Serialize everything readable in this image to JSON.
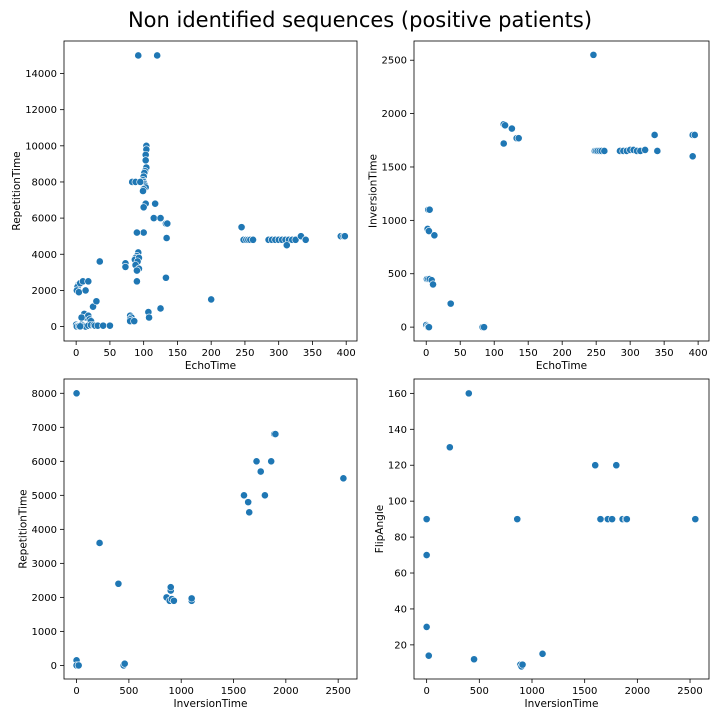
{
  "figure": {
    "title": "Non identified sequences (positive patients)"
  },
  "chart_data": [
    {
      "type": "scatter",
      "xlabel": "EchoTime",
      "ylabel": "RepetitionTime",
      "xlim": [
        -18,
        416
      ],
      "ylim": [
        -800,
        15800
      ],
      "xticks": [
        0,
        50,
        100,
        150,
        200,
        250,
        300,
        350,
        400
      ],
      "yticks": [
        0,
        2000,
        4000,
        6000,
        8000,
        10000,
        12000,
        14000
      ],
      "points": [
        [
          92,
          15000
        ],
        [
          120,
          15000
        ],
        [
          104,
          10000
        ],
        [
          104,
          9800
        ],
        [
          103,
          9500
        ],
        [
          103,
          9200
        ],
        [
          104,
          8800
        ],
        [
          102,
          8600
        ],
        [
          101,
          8500
        ],
        [
          100,
          8300
        ],
        [
          99,
          8100
        ],
        [
          100,
          8000
        ],
        [
          101,
          7900
        ],
        [
          102,
          7800
        ],
        [
          103,
          7700
        ],
        [
          100,
          7600
        ],
        [
          99,
          7500
        ],
        [
          83,
          8000
        ],
        [
          88,
          8000
        ],
        [
          95,
          8000
        ],
        [
          103,
          6800
        ],
        [
          117,
          6800
        ],
        [
          115,
          6000
        ],
        [
          125,
          6000
        ],
        [
          133,
          5700
        ],
        [
          135,
          5700
        ],
        [
          134,
          4900
        ],
        [
          100,
          6600
        ],
        [
          100,
          5200
        ],
        [
          90,
          5200
        ],
        [
          92,
          4100
        ],
        [
          90,
          3900
        ],
        [
          88,
          3800
        ],
        [
          87,
          3700
        ],
        [
          93,
          3800
        ],
        [
          91,
          3600
        ],
        [
          88,
          3400
        ],
        [
          93,
          3200
        ],
        [
          90,
          3100
        ],
        [
          90,
          2500
        ],
        [
          133,
          2700
        ],
        [
          73,
          3500
        ],
        [
          73,
          3300
        ],
        [
          35,
          3600
        ],
        [
          80,
          600
        ],
        [
          82,
          500
        ],
        [
          80,
          400
        ],
        [
          80,
          300
        ],
        [
          86,
          300
        ],
        [
          107,
          800
        ],
        [
          108,
          500
        ],
        [
          125,
          1000
        ],
        [
          200,
          1500
        ],
        [
          245,
          5500
        ],
        [
          248,
          4800
        ],
        [
          252,
          4800
        ],
        [
          255,
          4800
        ],
        [
          258,
          4800
        ],
        [
          262,
          4800
        ],
        [
          285,
          4800
        ],
        [
          290,
          4800
        ],
        [
          295,
          4800
        ],
        [
          300,
          4800
        ],
        [
          305,
          4800
        ],
        [
          310,
          4800
        ],
        [
          315,
          4800
        ],
        [
          320,
          4800
        ],
        [
          325,
          4800
        ],
        [
          333,
          5000
        ],
        [
          340,
          4800
        ],
        [
          312,
          4500
        ],
        [
          392,
          5000
        ],
        [
          396,
          5000
        ],
        [
          398,
          5000
        ],
        [
          3,
          2300
        ],
        [
          2,
          2200
        ],
        [
          1,
          2000
        ],
        [
          4,
          1900
        ],
        [
          6,
          2400
        ],
        [
          10,
          2500
        ],
        [
          18,
          2500
        ],
        [
          14,
          2000
        ],
        [
          25,
          1100
        ],
        [
          30,
          1400
        ],
        [
          12,
          700
        ],
        [
          15,
          500
        ],
        [
          18,
          600
        ],
        [
          20,
          400
        ],
        [
          22,
          300
        ],
        [
          8,
          500
        ],
        [
          0,
          100
        ],
        [
          2,
          50
        ],
        [
          5,
          0
        ],
        [
          8,
          100
        ],
        [
          10,
          50
        ],
        [
          14,
          0
        ],
        [
          18,
          50
        ],
        [
          22,
          80
        ],
        [
          26,
          80
        ],
        [
          28,
          50
        ],
        [
          32,
          50
        ],
        [
          40,
          50
        ],
        [
          50,
          50
        ],
        [
          1,
          0
        ],
        [
          4,
          20
        ],
        [
          6,
          10
        ]
      ]
    },
    {
      "type": "scatter",
      "xlabel": "EchoTime",
      "ylabel": "InversionTime",
      "xlim": [
        -18,
        416
      ],
      "ylim": [
        -130,
        2680
      ],
      "xticks": [
        0,
        50,
        100,
        150,
        200,
        250,
        300,
        350,
        400
      ],
      "yticks": [
        0,
        500,
        1000,
        1500,
        2000,
        2500
      ],
      "points": [
        [
          246,
          2550
        ],
        [
          114,
          1900
        ],
        [
          116,
          1890
        ],
        [
          114,
          1720
        ],
        [
          126,
          1860
        ],
        [
          133,
          1770
        ],
        [
          136,
          1770
        ],
        [
          336,
          1800
        ],
        [
          392,
          1800
        ],
        [
          395,
          1800
        ],
        [
          392,
          1600
        ],
        [
          248,
          1650
        ],
        [
          250,
          1650
        ],
        [
          252,
          1650
        ],
        [
          255,
          1650
        ],
        [
          258,
          1650
        ],
        [
          262,
          1650
        ],
        [
          285,
          1650
        ],
        [
          290,
          1650
        ],
        [
          295,
          1650
        ],
        [
          300,
          1660
        ],
        [
          305,
          1660
        ],
        [
          310,
          1650
        ],
        [
          315,
          1650
        ],
        [
          322,
          1660
        ],
        [
          340,
          1650
        ],
        [
          3,
          1100
        ],
        [
          5,
          1100
        ],
        [
          2,
          920
        ],
        [
          4,
          900
        ],
        [
          12,
          860
        ],
        [
          1,
          450
        ],
        [
          3,
          450
        ],
        [
          5,
          450
        ],
        [
          8,
          440
        ],
        [
          10,
          400
        ],
        [
          36,
          220
        ],
        [
          0,
          20
        ],
        [
          2,
          10
        ],
        [
          3,
          0
        ],
        [
          4,
          0
        ],
        [
          83,
          0
        ],
        [
          85,
          0
        ]
      ]
    },
    {
      "type": "scatter",
      "xlabel": "InversionTime",
      "ylabel": "RepetitionTime",
      "xlim": [
        -120,
        2680
      ],
      "ylim": [
        -400,
        8420
      ],
      "xticks": [
        0,
        500,
        1000,
        1500,
        2000,
        2500
      ],
      "yticks": [
        0,
        1000,
        2000,
        3000,
        4000,
        5000,
        6000,
        7000,
        8000
      ],
      "points": [
        [
          0,
          8000
        ],
        [
          0,
          150
        ],
        [
          0,
          0
        ],
        [
          20,
          0
        ],
        [
          220,
          3600
        ],
        [
          400,
          2400
        ],
        [
          450,
          0
        ],
        [
          460,
          50
        ],
        [
          860,
          2000
        ],
        [
          890,
          1900
        ],
        [
          900,
          2200
        ],
        [
          900,
          2300
        ],
        [
          910,
          1950
        ],
        [
          930,
          1900
        ],
        [
          1100,
          1900
        ],
        [
          1100,
          1970
        ],
        [
          1600,
          5000
        ],
        [
          1640,
          4800
        ],
        [
          1650,
          4500
        ],
        [
          1720,
          6000
        ],
        [
          1760,
          5700
        ],
        [
          1800,
          5000
        ],
        [
          1860,
          6000
        ],
        [
          1890,
          6800
        ],
        [
          1900,
          6800
        ],
        [
          2550,
          5500
        ]
      ]
    },
    {
      "type": "scatter",
      "xlabel": "InversionTime",
      "ylabel": "FlipAngle",
      "xlim": [
        -120,
        2680
      ],
      "ylim": [
        1,
        168
      ],
      "xticks": [
        0,
        500,
        1000,
        1500,
        2000,
        2500
      ],
      "yticks": [
        20,
        40,
        60,
        80,
        100,
        120,
        140,
        160
      ],
      "points": [
        [
          0,
          90
        ],
        [
          0,
          70
        ],
        [
          0,
          30
        ],
        [
          20,
          14
        ],
        [
          220,
          130
        ],
        [
          400,
          160
        ],
        [
          450,
          12
        ],
        [
          860,
          90
        ],
        [
          890,
          9
        ],
        [
          900,
          8
        ],
        [
          910,
          9
        ],
        [
          1100,
          15
        ],
        [
          1600,
          120
        ],
        [
          1650,
          90
        ],
        [
          1720,
          90
        ],
        [
          1760,
          90
        ],
        [
          1800,
          120
        ],
        [
          1860,
          90
        ],
        [
          1890,
          90
        ],
        [
          1900,
          90
        ],
        [
          2550,
          90
        ]
      ]
    }
  ]
}
